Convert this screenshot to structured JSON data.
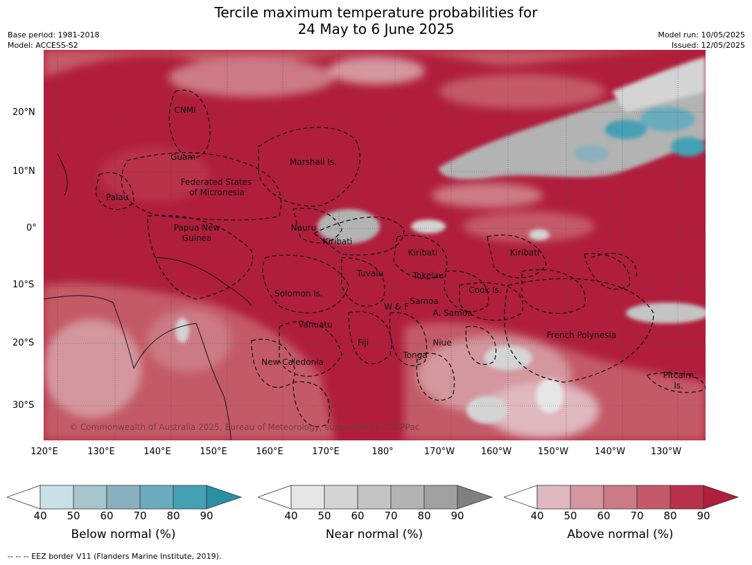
{
  "title": {
    "line1": "Tercile maximum temperature probabilities for",
    "line2": "24 May to 6 June 2025"
  },
  "meta": {
    "base_period": "Base period: 1981-2018",
    "model": "Model: ACCESS-S2",
    "model_run": "Model run: 10/05/2025",
    "issued": "Issued: 12/05/2025"
  },
  "copyright": "© Commonwealth of Australia 2025, Bureau of Meteorology, supported by COSPPac",
  "footer": "--  --  -- EEZ border V11 (Flanders Marine Institute, 2019).",
  "lat_labels": [
    "20°N",
    "10°N",
    "0°",
    "10°S",
    "20°S",
    "30°S"
  ],
  "lon_labels": [
    "120°E",
    "130°E",
    "140°E",
    "150°E",
    "160°E",
    "170°E",
    "180°",
    "170°W",
    "160°W",
    "150°W",
    "140°W",
    "130°W"
  ],
  "place_labels": [
    "CNMI",
    "Guam",
    "Marshall Is.",
    "Palau",
    "Federated States",
    "of Micronesia",
    "Papua New",
    "Guinea",
    "Nauru",
    "Kiribati",
    "Kiribati",
    "Kiribati",
    "Tuvalu",
    "Tokelau",
    "Solomon Is.",
    "Cook Is.",
    "Samoa",
    "W & F",
    "A. Samoa",
    "Vanuatu",
    "Fiji",
    "Niue",
    "French Polynesia",
    "New Caledonia",
    "Tonga",
    "Pitcairn",
    "Is."
  ],
  "colorbars": [
    {
      "title": "Below normal (%)",
      "ticks": [
        "40",
        "50",
        "60",
        "70",
        "80",
        "90"
      ],
      "colors": [
        "#ffffff",
        "#c8e0e8",
        "#a6c5cc",
        "#89b0bd",
        "#6aacbd",
        "#44a0b4",
        "#2a8ea5"
      ]
    },
    {
      "title": "Near normal (%)",
      "ticks": [
        "40",
        "50",
        "60",
        "70",
        "80",
        "90"
      ],
      "colors": [
        "#ffffff",
        "#e6e6e6",
        "#d4d4d4",
        "#c4c4c4",
        "#b3b3b3",
        "#a0a0a0",
        "#808080"
      ]
    },
    {
      "title": "Above normal (%)",
      "ticks": [
        "40",
        "50",
        "60",
        "70",
        "80",
        "90"
      ],
      "colors": [
        "#ffffff",
        "#e0b8bf",
        "#d4979f",
        "#cc7a85",
        "#c45a68",
        "#b9314a",
        "#b01e3c"
      ]
    }
  ]
}
